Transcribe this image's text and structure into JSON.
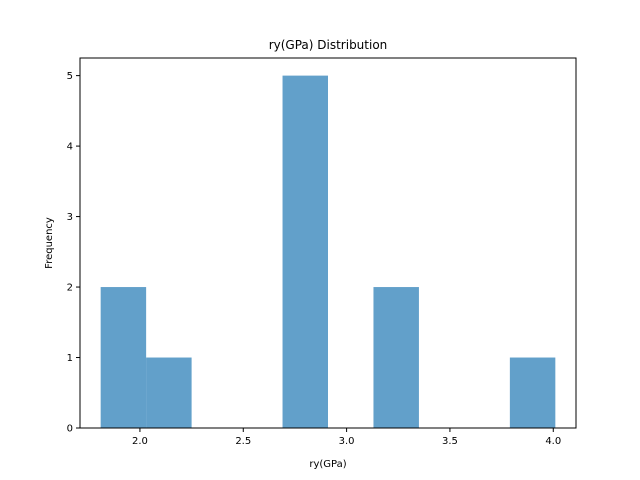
{
  "chart_data": {
    "type": "bar",
    "subtype": "histogram",
    "title": "ry(GPa) Distribution",
    "xlabel": "ry(GPa)",
    "ylabel": "Frequency",
    "xlim": [
      1.71,
      4.11
    ],
    "ylim": [
      0,
      5.25
    ],
    "xticks": [
      2.0,
      2.5,
      3.0,
      3.5,
      4.0
    ],
    "xtick_labels": [
      "2.0",
      "2.5",
      "3.0",
      "3.5",
      "4.0"
    ],
    "yticks": [
      0,
      1,
      2,
      3,
      4,
      5
    ],
    "ytick_labels": [
      "0",
      "1",
      "2",
      "3",
      "4",
      "5"
    ],
    "bins": [
      {
        "start": 1.81,
        "end": 2.03,
        "count": 2
      },
      {
        "start": 2.03,
        "end": 2.25,
        "count": 1
      },
      {
        "start": 2.25,
        "end": 2.47,
        "count": 0
      },
      {
        "start": 2.47,
        "end": 2.69,
        "count": 0
      },
      {
        "start": 2.69,
        "end": 2.91,
        "count": 5
      },
      {
        "start": 2.91,
        "end": 3.13,
        "count": 0
      },
      {
        "start": 3.13,
        "end": 3.35,
        "count": 2
      },
      {
        "start": 3.35,
        "end": 3.57,
        "count": 0
      },
      {
        "start": 3.57,
        "end": 3.79,
        "count": 0
      },
      {
        "start": 3.79,
        "end": 4.01,
        "count": 1
      }
    ],
    "bar_color": "#1f77b4",
    "bar_opacity": 0.7,
    "grid": false
  }
}
